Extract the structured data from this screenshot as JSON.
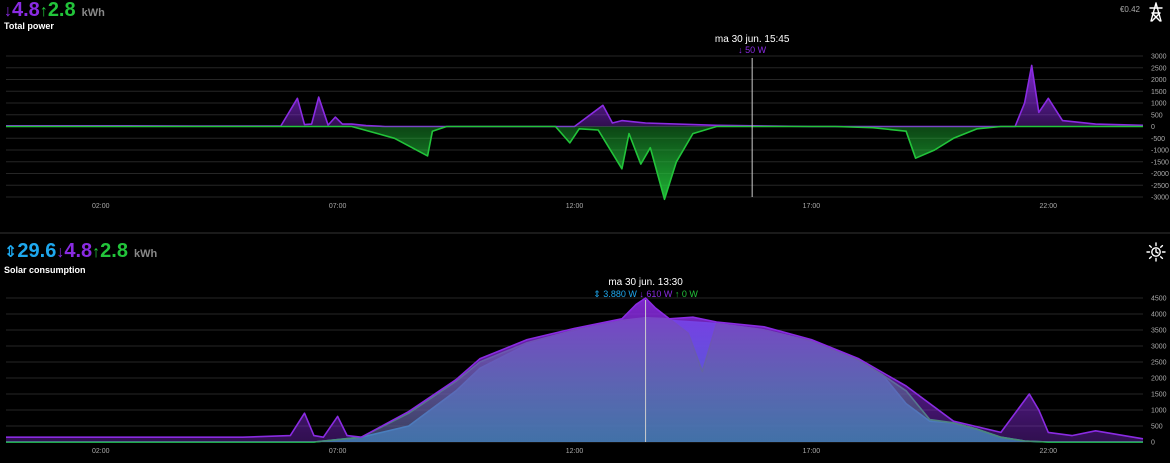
{
  "colors": {
    "import": "#8a2be2",
    "export": "#22c43a",
    "solar": "#1ea8ee",
    "grid": "#262626",
    "cursor": "#cccccc"
  },
  "top": {
    "summary": {
      "import_arrow": "↓",
      "import_value": "4.8",
      "export_arrow": "↑",
      "export_value": "2.8",
      "unit": "kWh"
    },
    "title": "Total power",
    "price": "€0.42",
    "icon": "power-pylon-icon",
    "tooltip": {
      "title": "ma 30 jun. 15:45",
      "arrow": "↓",
      "value": "50 W"
    }
  },
  "bottom": {
    "summary": {
      "solar_arrow": "⇕",
      "solar_value": "29.6",
      "import_arrow": "↓",
      "import_value": "4.8",
      "export_arrow": "↑",
      "export_value": "2.8",
      "unit": "kWh"
    },
    "title": "Solar consumption",
    "icon": "sun-icon",
    "tooltip": {
      "title": "ma 30 jun. 13:30",
      "solar_arrow": "⇕",
      "solar_value": "3.880 W",
      "import_arrow": "↓",
      "import_value": "610 W",
      "export_arrow": "↑",
      "export_value": "0 W"
    }
  },
  "chart_data": [
    {
      "type": "area",
      "title": "Total power",
      "xlabel": "",
      "ylabel": "",
      "x_ticks": [
        "02:00",
        "07:00",
        "12:00",
        "17:00",
        "22:00"
      ],
      "xlim": [
        0,
        24
      ],
      "ylim": [
        -3000,
        3000
      ],
      "y_ticks": [
        3000,
        2500,
        2000,
        1500,
        1000,
        500,
        0,
        -500,
        -1000,
        -1500,
        -2000,
        -2500,
        -3000
      ],
      "y_tick_labels": [
        "3000",
        "2500",
        "2000",
        "1500",
        "1000",
        "500",
        "0",
        "-500",
        "-1000",
        "-1500",
        "-2000",
        "-2500",
        "-3000"
      ],
      "grid": true,
      "cursor_hour": 15.75,
      "series": [
        {
          "kind": "import",
          "x": [
            0,
            2,
            4,
            5.8,
            6.15,
            6.3,
            6.45,
            6.6,
            6.8,
            6.95,
            7.1,
            7.3,
            7.6,
            8,
            12,
            12.6,
            12.8,
            13,
            13.5,
            15,
            17,
            21.3,
            21.5,
            21.65,
            21.8,
            22,
            22.3,
            23,
            24
          ],
          "y": [
            30,
            30,
            20,
            20,
            1200,
            80,
            100,
            1250,
            60,
            400,
            100,
            100,
            40,
            0,
            0,
            900,
            150,
            250,
            150,
            50,
            0,
            0,
            1000,
            2600,
            600,
            1200,
            250,
            100,
            50
          ]
        },
        {
          "kind": "export",
          "x": [
            0,
            7.3,
            8.2,
            8.9,
            9.0,
            9.3,
            11.6,
            11.9,
            12.1,
            12.5,
            13.0,
            13.15,
            13.4,
            13.6,
            13.9,
            14.15,
            14.5,
            15,
            17.5,
            18.3,
            19,
            19.2,
            19.6,
            20,
            20.5,
            21,
            24
          ],
          "y": [
            0,
            0,
            -500,
            -1250,
            -200,
            0,
            0,
            -700,
            -100,
            -150,
            -1800,
            -300,
            -1600,
            -900,
            -3100,
            -1500,
            -300,
            0,
            0,
            -50,
            -200,
            -1350,
            -1000,
            -500,
            -100,
            0,
            0
          ]
        }
      ]
    },
    {
      "type": "area",
      "title": "Solar consumption",
      "xlabel": "",
      "ylabel": "",
      "x_ticks": [
        "02:00",
        "07:00",
        "12:00",
        "17:00",
        "22:00"
      ],
      "xlim": [
        0,
        24
      ],
      "ylim": [
        0,
        4500
      ],
      "y_ticks": [
        4500,
        4000,
        3500,
        3000,
        2500,
        2000,
        1500,
        1000,
        500,
        0
      ],
      "y_tick_labels": [
        "4500",
        "4000",
        "3500",
        "3000",
        "2500",
        "2000",
        "1500",
        "1000",
        "500",
        "0"
      ],
      "grid": true,
      "cursor_hour": 13.5,
      "series": [
        {
          "kind": "solar",
          "name": "Solar",
          "x": [
            0,
            6.5,
            7.5,
            8.5,
            9.5,
            10,
            11,
            12,
            13,
            13.5,
            14,
            15,
            16,
            17,
            18,
            18.5,
            19,
            19.5,
            20,
            20.5,
            21,
            21.5,
            22,
            24
          ],
          "y": [
            0,
            0,
            150,
            500,
            1600,
            2300,
            3050,
            3450,
            3750,
            3880,
            3800,
            3700,
            3500,
            3150,
            2550,
            2100,
            1200,
            650,
            600,
            400,
            150,
            30,
            0,
            0
          ]
        },
        {
          "kind": "export",
          "x": [
            0,
            6.5,
            7.5,
            8.5,
            9.5,
            10,
            11,
            12,
            13,
            13.5,
            14,
            14.4,
            14.7,
            15,
            16,
            17,
            18,
            18.5,
            19,
            19.5,
            20,
            20.5,
            21,
            21.5,
            22,
            24
          ],
          "y": [
            0,
            0,
            150,
            900,
            1900,
            2500,
            3100,
            3500,
            3800,
            3880,
            3850,
            3400,
            2200,
            3700,
            3500,
            3150,
            2550,
            2100,
            1600,
            700,
            600,
            400,
            150,
            30,
            0,
            0
          ]
        },
        {
          "kind": "import",
          "x": [
            0,
            5,
            6,
            6.3,
            6.5,
            6.7,
            7,
            7.2,
            7.5,
            8.5,
            9.5,
            10,
            10.5,
            11,
            12,
            13,
            13.3,
            13.5,
            13.7,
            14,
            14.5,
            15,
            16,
            17,
            18,
            19,
            20,
            21,
            21.3,
            21.6,
            21.8,
            22,
            22.5,
            23,
            24
          ],
          "y": [
            150,
            150,
            200,
            900,
            200,
            150,
            800,
            200,
            150,
            950,
            1950,
            2600,
            2900,
            3200,
            3550,
            3850,
            4300,
            4500,
            4200,
            3850,
            3900,
            3750,
            3600,
            3200,
            2600,
            1750,
            650,
            300,
            900,
            1500,
            1000,
            300,
            200,
            350,
            100
          ]
        }
      ]
    }
  ]
}
